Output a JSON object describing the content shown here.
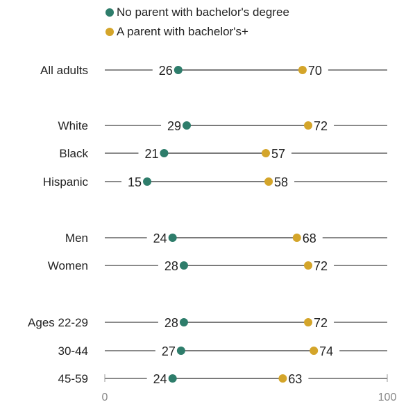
{
  "chart_data": {
    "type": "dot",
    "title": "",
    "xlim": [
      0,
      100
    ],
    "x_ticks": [
      "0",
      "100"
    ],
    "series": [
      {
        "name": "No parent with bachelor's degree",
        "color": "#2e7d6b"
      },
      {
        "name": "A parent with bachelor's+",
        "color": "#d4a52a"
      }
    ],
    "rows": [
      {
        "label": "All adults",
        "values": [
          26,
          70
        ]
      },
      {
        "label": "White",
        "values": [
          29,
          72
        ]
      },
      {
        "label": "Black",
        "values": [
          21,
          57
        ]
      },
      {
        "label": "Hispanic",
        "values": [
          15,
          58
        ]
      },
      {
        "label": "Men",
        "values": [
          24,
          68
        ]
      },
      {
        "label": "Women",
        "values": [
          28,
          72
        ]
      },
      {
        "label": "Ages 22-29",
        "values": [
          28,
          72
        ]
      },
      {
        "label": "30-44",
        "values": [
          27,
          74
        ]
      },
      {
        "label": "45-59",
        "values": [
          24,
          63
        ]
      }
    ]
  }
}
